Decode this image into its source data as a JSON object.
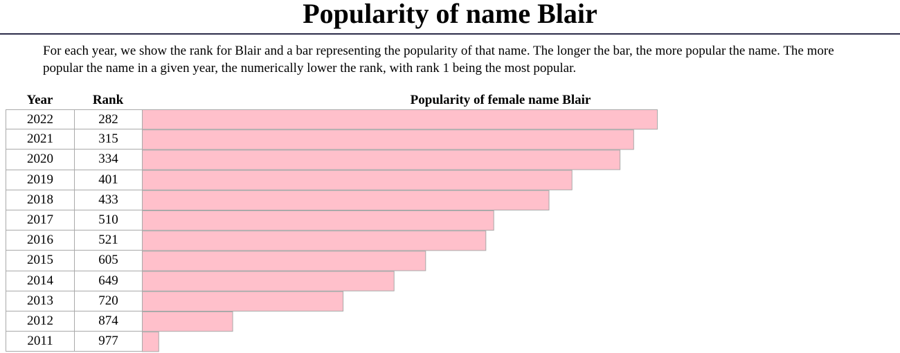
{
  "title": "Popularity of name Blair",
  "intro": "For each year, we show the rank for Blair and a bar representing the popularity of that name. The longer the bar, the more popular the name. The more popular the name in a given year, the numerically lower the rank, with rank 1 being the most popular.",
  "table": {
    "year_header": "Year",
    "rank_header": "Rank",
    "chart_header": "Popularity of female name Blair"
  },
  "colors": {
    "bar": "#ffc0cb",
    "border": "#a9a9a9",
    "rule": "#2c2c4a"
  },
  "chart_data": {
    "type": "bar",
    "orientation": "horizontal",
    "title": "Popularity of female name Blair",
    "categories": [
      "2022",
      "2021",
      "2020",
      "2019",
      "2018",
      "2017",
      "2016",
      "2015",
      "2014",
      "2013",
      "2012",
      "2011"
    ],
    "ranks": [
      282,
      315,
      334,
      401,
      433,
      510,
      521,
      605,
      649,
      720,
      874,
      977
    ],
    "bar_color": "#ffc0cb",
    "grid": false,
    "legend": "none"
  }
}
